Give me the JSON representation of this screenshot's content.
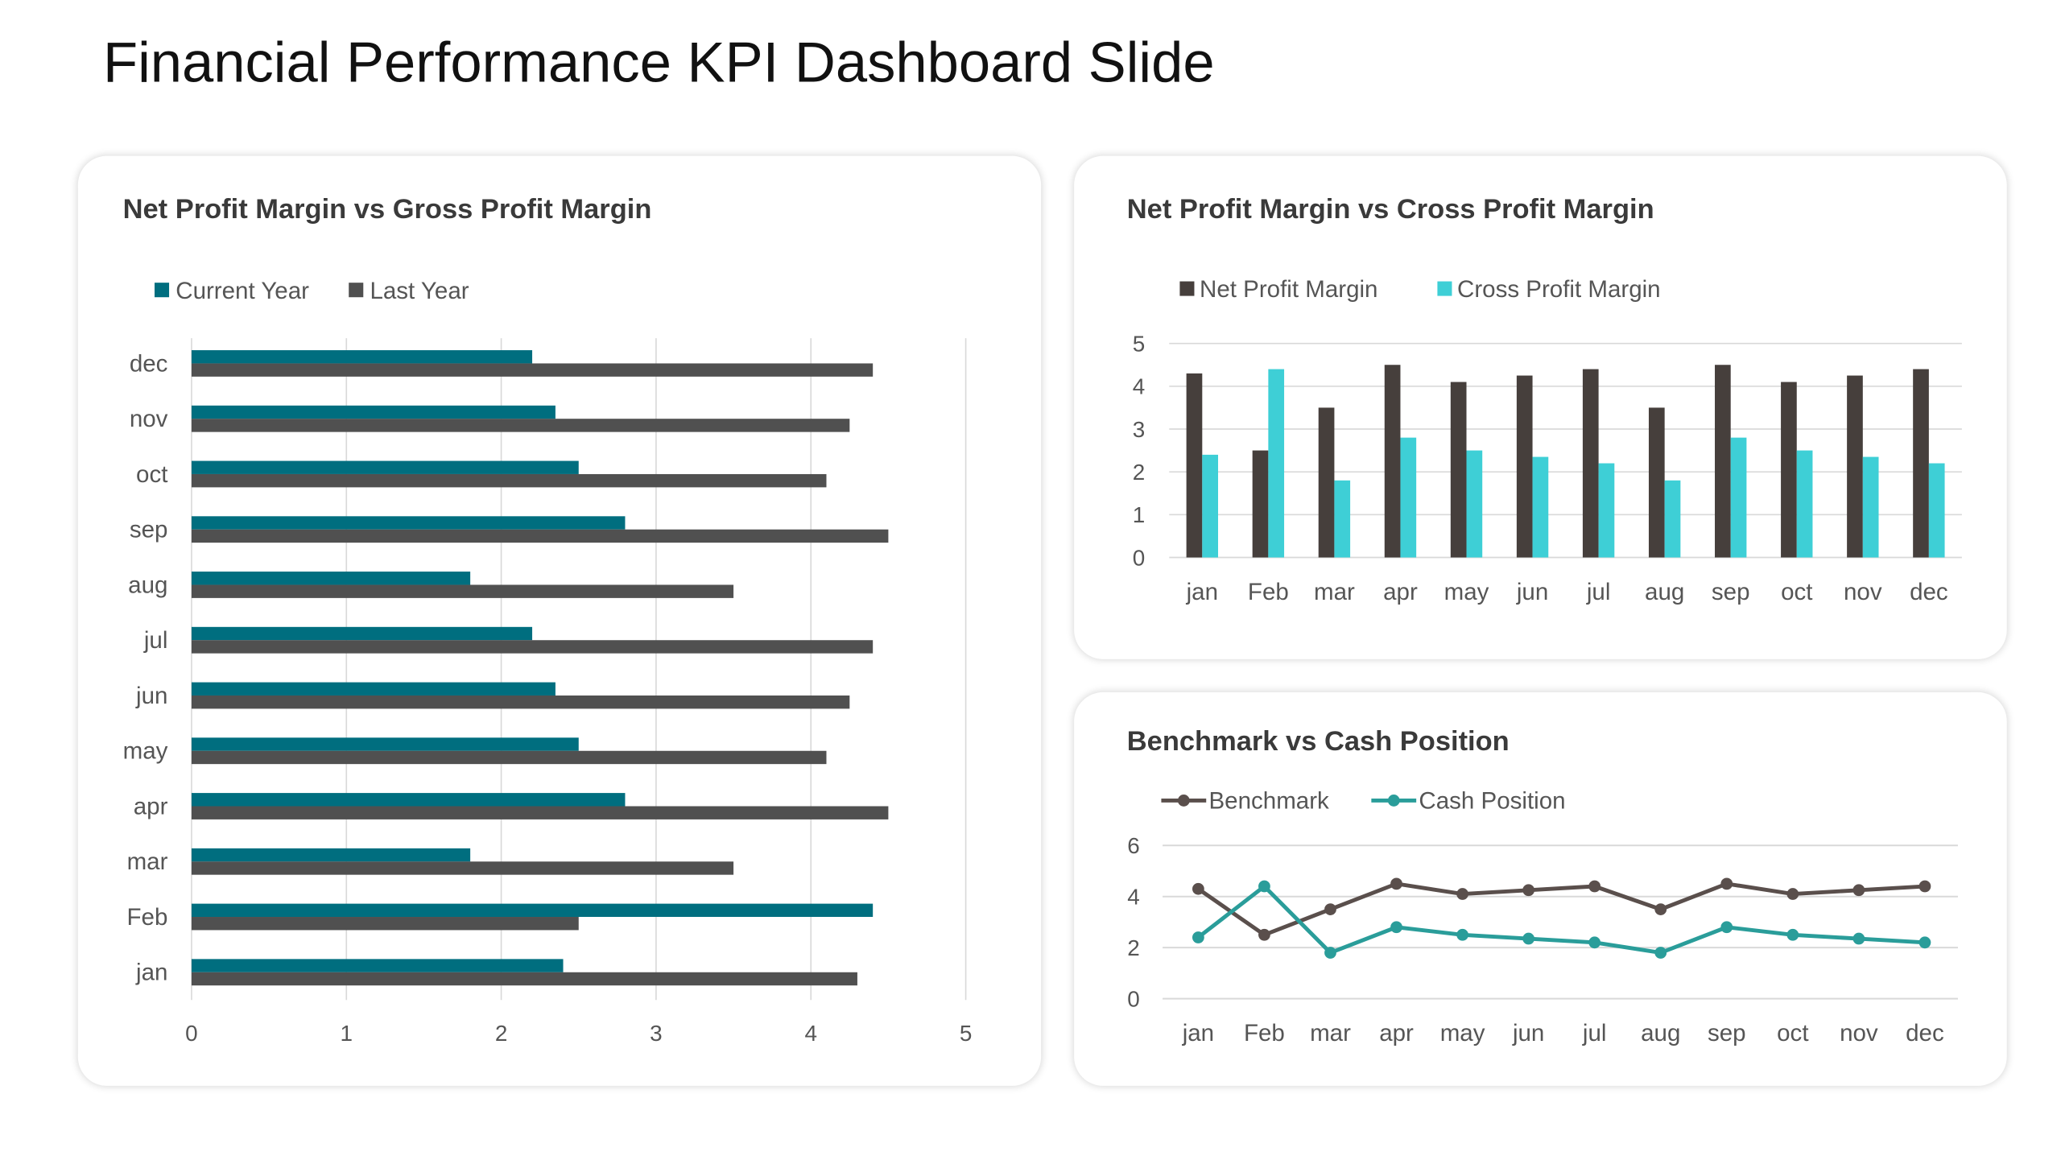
{
  "page_title": "Financial Performance KPI Dashboard Slide",
  "chart_data": [
    {
      "type": "bar",
      "orientation": "horizontal",
      "title": "Net Profit Margin vs Gross Profit Margin",
      "categories": [
        "jan",
        "Feb",
        "mar",
        "apr",
        "may",
        "jun",
        "jul",
        "aug",
        "sep",
        "oct",
        "nov",
        "dec"
      ],
      "series": [
        {
          "name": "Current Year",
          "color": "#006e7f",
          "values": [
            2.4,
            4.4,
            1.8,
            2.8,
            2.5,
            2.35,
            2.2,
            1.8,
            2.8,
            2.5,
            2.35,
            2.2
          ]
        },
        {
          "name": "Last Year",
          "color": "#505050",
          "values": [
            4.3,
            2.5,
            3.5,
            4.5,
            4.1,
            4.25,
            4.4,
            3.5,
            4.5,
            4.1,
            4.25,
            4.4
          ]
        }
      ],
      "xlim": [
        0,
        5
      ],
      "xticks": [
        "0",
        "1",
        "2",
        "3",
        "4",
        "5"
      ],
      "grid": true,
      "legend": "top-left"
    },
    {
      "type": "bar",
      "title": "Net Profit Margin vs Cross Profit Margin",
      "categories": [
        "jan",
        "Feb",
        "mar",
        "apr",
        "may",
        "jun",
        "jul",
        "aug",
        "sep",
        "oct",
        "nov",
        "dec"
      ],
      "series": [
        {
          "name": "Net Profit Margin",
          "color": "#463f3c",
          "values": [
            4.3,
            2.5,
            3.5,
            4.5,
            4.1,
            4.25,
            4.4,
            3.5,
            4.5,
            4.1,
            4.25,
            4.4
          ]
        },
        {
          "name": "Cross Profit Margin",
          "color": "#3ecfd6",
          "values": [
            2.4,
            4.4,
            1.8,
            2.8,
            2.5,
            2.35,
            2.2,
            1.8,
            2.8,
            2.5,
            2.35,
            2.2
          ]
        }
      ],
      "ylim": [
        0,
        5
      ],
      "yticks": [
        "0",
        "1",
        "2",
        "3",
        "4",
        "5"
      ],
      "grid": true,
      "legend": "top-left"
    },
    {
      "type": "line",
      "title": "Benchmark vs Cash Position",
      "categories": [
        "jan",
        "Feb",
        "mar",
        "apr",
        "may",
        "jun",
        "jul",
        "aug",
        "sep",
        "oct",
        "nov",
        "dec"
      ],
      "series": [
        {
          "name": "Benchmark",
          "color": "#5a4f4c",
          "values": [
            4.3,
            2.5,
            3.5,
            4.5,
            4.1,
            4.25,
            4.4,
            3.5,
            4.5,
            4.1,
            4.25,
            4.4
          ]
        },
        {
          "name": "Cash Position",
          "color": "#2a9d9a",
          "values": [
            2.4,
            4.4,
            1.8,
            2.8,
            2.5,
            2.35,
            2.2,
            1.8,
            2.8,
            2.5,
            2.35,
            2.2
          ]
        }
      ],
      "ylim": [
        0,
        6
      ],
      "yticks": [
        "0",
        "2",
        "4",
        "6"
      ],
      "grid": true,
      "legend": "top-left"
    }
  ]
}
